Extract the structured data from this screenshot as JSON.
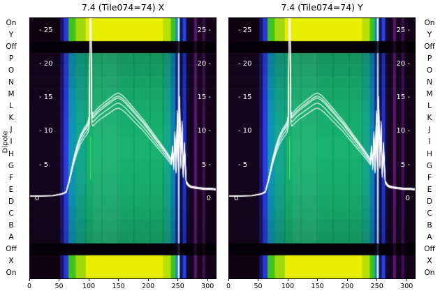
{
  "chart_data": {
    "type": "heatmap",
    "panels": [
      {
        "title": "7.4 (Tile074=74) X"
      },
      {
        "title": "7.4 (Tile074=74) Y"
      }
    ],
    "ylabel": "Dipole",
    "rows": [
      {
        "label": "On",
        "kind": "hot"
      },
      {
        "label": "Y",
        "kind": "hot"
      },
      {
        "label": "Off",
        "kind": "off"
      },
      {
        "label": "P",
        "kind": "mid"
      },
      {
        "label": "O",
        "kind": "mid"
      },
      {
        "label": "N",
        "kind": "mid"
      },
      {
        "label": "M",
        "kind": "mid"
      },
      {
        "label": "L",
        "kind": "mid"
      },
      {
        "label": "K",
        "kind": "mid"
      },
      {
        "label": "J",
        "kind": "mid"
      },
      {
        "label": "I",
        "kind": "mid"
      },
      {
        "label": "H",
        "kind": "mid"
      },
      {
        "label": "G",
        "kind": "mid"
      },
      {
        "label": "F",
        "kind": "mid"
      },
      {
        "label": "E",
        "kind": "mid"
      },
      {
        "label": "D",
        "kind": "mid"
      },
      {
        "label": "C",
        "kind": "mid"
      },
      {
        "label": "B",
        "kind": "mid"
      },
      {
        "label": "A",
        "kind": "mid"
      },
      {
        "label": "Off",
        "kind": "off"
      },
      {
        "label": "X",
        "kind": "hot"
      },
      {
        "label": "On",
        "kind": "hot"
      }
    ],
    "x_ticks": [
      0,
      50,
      100,
      150,
      200,
      250,
      300
    ],
    "xlim": [
      0,
      315
    ],
    "power_ticks": [
      25,
      20,
      15,
      10,
      5,
      0
    ],
    "vlim": [
      -12,
      27
    ],
    "colors": {
      "curve": "#ffffff",
      "background": "#ffffff",
      "tick_text": "#000000",
      "inner_tick_text": "#ffffff"
    },
    "segments": [
      {
        "x0": 0,
        "x1": 52,
        "hot": "#10020f",
        "mid": "#14041c",
        "off": "#050008"
      },
      {
        "x0": 52,
        "x1": 58,
        "hot": "#1a1670",
        "mid": "#1a1670",
        "off": "#050008"
      },
      {
        "x0": 58,
        "x1": 66,
        "hot": "#2a3ad8",
        "mid": "#2a3ad8",
        "off": "#050008"
      },
      {
        "x0": 66,
        "x1": 78,
        "hot": "#3ec41e",
        "mid": "#0f8fb0",
        "off": "#050008"
      },
      {
        "x0": 78,
        "x1": 95,
        "hot": "#9fd80c",
        "mid": "#12a186",
        "off": "#050008"
      },
      {
        "x0": 95,
        "x1": 225,
        "hot": "#e8ee00",
        "mid": "#17aa6b",
        "off": "#050008"
      },
      {
        "x0": 225,
        "x1": 238,
        "hot": "#b8e000",
        "mid": "#14a083",
        "off": "#050008"
      },
      {
        "x0": 238,
        "x1": 246,
        "hot": "#3ec41e",
        "mid": "#0e7fa8",
        "off": "#050008"
      },
      {
        "x0": 246,
        "x1": 250,
        "hot": "#1888c8",
        "mid": "#14249a",
        "off": "#08081a"
      },
      {
        "x0": 250,
        "x1": 253,
        "hot": "#dff2ff",
        "mid": "#c2e2f8",
        "off": "#26263a"
      },
      {
        "x0": 253,
        "x1": 258,
        "hot": "#0e1860",
        "mid": "#0c1048",
        "off": "#050008"
      },
      {
        "x0": 258,
        "x1": 264,
        "hot": "#2a40e0",
        "mid": "#2232c8",
        "off": "#050008"
      },
      {
        "x0": 264,
        "x1": 270,
        "hot": "#120a32",
        "mid": "#120a32",
        "off": "#050008"
      },
      {
        "x0": 270,
        "x1": 277,
        "hot": "#16041e",
        "mid": "#16041e",
        "off": "#050008"
      },
      {
        "x0": 277,
        "x1": 282,
        "hot": "#561a6c",
        "mid": "#561a6c",
        "off": "#200828"
      },
      {
        "x0": 282,
        "x1": 291,
        "hot": "#190420",
        "mid": "#190420",
        "off": "#050008"
      },
      {
        "x0": 291,
        "x1": 296,
        "hot": "#3a1150",
        "mid": "#3a1150",
        "off": "#150418"
      },
      {
        "x0": 296,
        "x1": 315,
        "hot": "#130218",
        "mid": "#130218",
        "off": "#050008"
      }
    ],
    "col_lines": [
      95,
      122,
      149,
      176,
      203,
      225
    ],
    "bright_patch": {
      "x0": 108,
      "x1": 152,
      "alpha": 0.05
    },
    "rfi_line": {
      "x": 103,
      "row0": 10,
      "row1": 13.6,
      "color": "#66ff44",
      "alpha": 0.55
    },
    "curve": {
      "x": [
        0,
        20,
        40,
        55,
        62,
        68,
        74,
        80,
        86,
        92,
        96,
        99,
        101,
        103,
        105,
        107,
        110,
        115,
        120,
        126,
        132,
        138,
        144,
        150,
        156,
        162,
        168,
        174,
        180,
        186,
        192,
        198,
        204,
        210,
        216,
        222,
        228,
        233,
        236,
        239,
        241,
        243,
        245,
        247,
        249,
        251,
        253,
        255,
        257,
        259,
        261,
        264,
        268,
        272,
        278,
        285,
        295,
        305,
        314
      ],
      "y": [
        0.4,
        0.4,
        0.45,
        0.7,
        1,
        3,
        5.5,
        7.5,
        9,
        10,
        10.5,
        11,
        12,
        38,
        12.5,
        12,
        12.3,
        12.8,
        13.2,
        13.6,
        14,
        14.4,
        14.8,
        15,
        14.7,
        14.2,
        13.6,
        13,
        12.4,
        11.8,
        11.2,
        10.5,
        9.8,
        9.1,
        8.4,
        7.7,
        7,
        6.4,
        6,
        5.6,
        7.5,
        4.8,
        9.5,
        4.2,
        12.5,
        4.5,
        14.5,
        5,
        11,
        3.5,
        8,
        2.5,
        2,
        1.8,
        1.7,
        1.6,
        1.5,
        1.5,
        1.4
      ]
    },
    "curve_scales": [
      1,
      0.95,
      1.05,
      0.9,
      1.02
    ]
  }
}
